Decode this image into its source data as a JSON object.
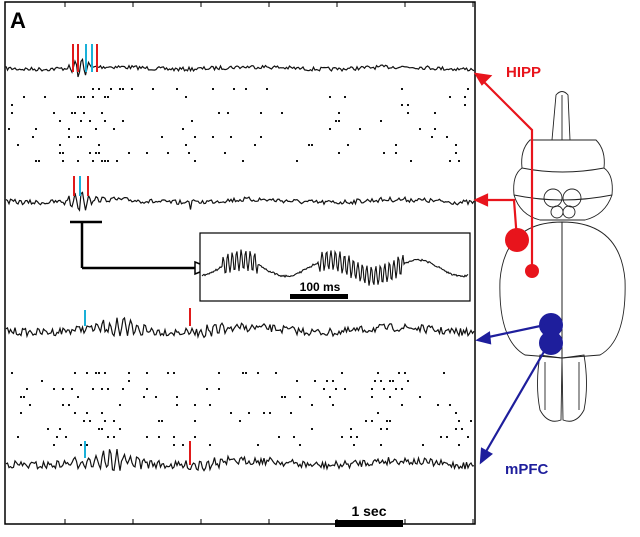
{
  "figure": {
    "panel_label": "A",
    "regions": {
      "hipp": {
        "label": "HIPP",
        "color": "#e8141c"
      },
      "mpfc": {
        "label": "mPFC",
        "color": "#1e1e9c"
      }
    },
    "inset_scale_label": "100 ms",
    "time_scale_label": "1 sec",
    "marker_colors": {
      "cyan": "#1ab0d8",
      "red": "#e01a1a"
    },
    "trace_color": "#111111"
  }
}
